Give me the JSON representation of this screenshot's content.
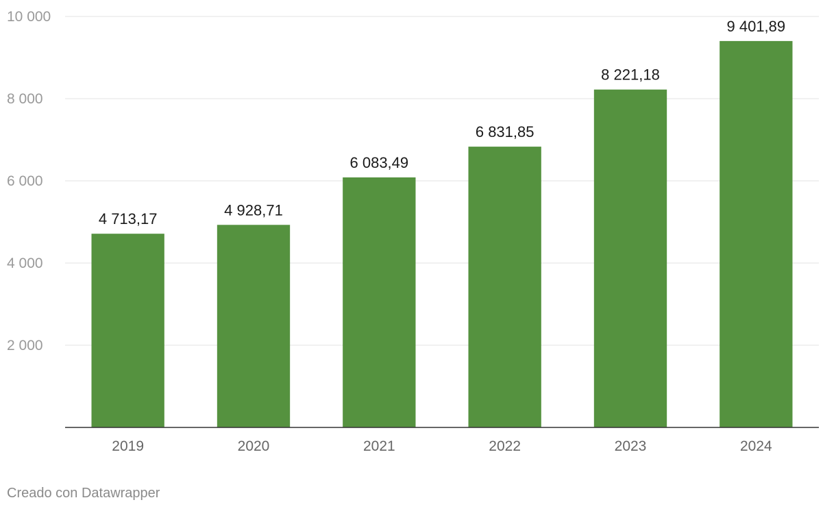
{
  "chart_data": {
    "type": "bar",
    "categories": [
      "2019",
      "2020",
      "2021",
      "2022",
      "2023",
      "2024"
    ],
    "values": [
      4713.17,
      4928.71,
      6083.49,
      6831.85,
      8221.18,
      9401.89
    ],
    "value_labels": [
      "4 713,17",
      "4 928,71",
      "6 083,49",
      "6 831,85",
      "8 221,18",
      "9 401,89"
    ],
    "yticks": [
      2000,
      4000,
      6000,
      8000,
      10000
    ],
    "ytick_labels": [
      "2 000",
      "4 000",
      "6 000",
      "8 000",
      "10 000"
    ],
    "ylim": [
      0,
      10000
    ],
    "title": "",
    "xlabel": "",
    "ylabel": "",
    "grid": true,
    "bar_color": "#55923f"
  },
  "footer": {
    "credit": "Creado con Datawrapper"
  }
}
